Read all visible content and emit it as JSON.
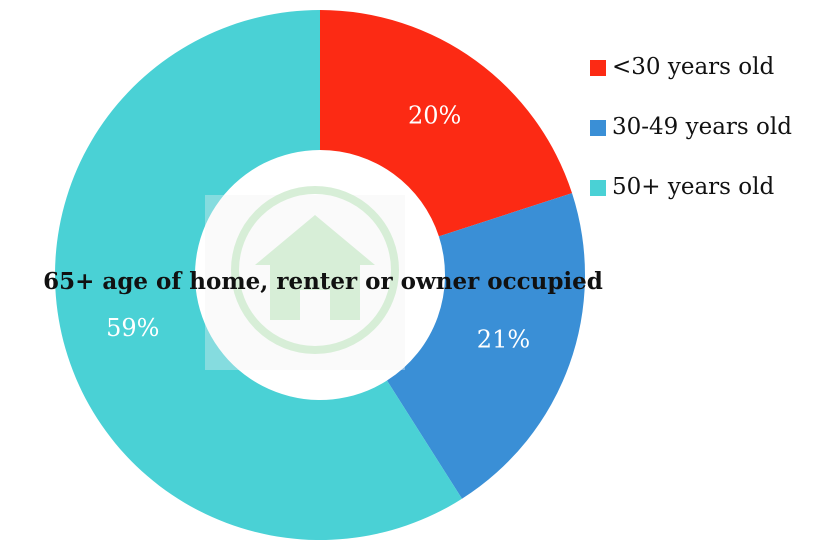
{
  "chart_data": {
    "type": "donut",
    "title": "65+ age of home, renter or owner occupied",
    "categories": [
      "<30 years old",
      "30-49 years old",
      "50+ years old"
    ],
    "values": [
      20,
      21,
      59
    ],
    "value_labels": [
      "20%",
      "21%",
      "59%"
    ],
    "colors": [
      "#fc2a14",
      "#3a8fd6",
      "#4ad1d5"
    ],
    "legend": "right"
  }
}
